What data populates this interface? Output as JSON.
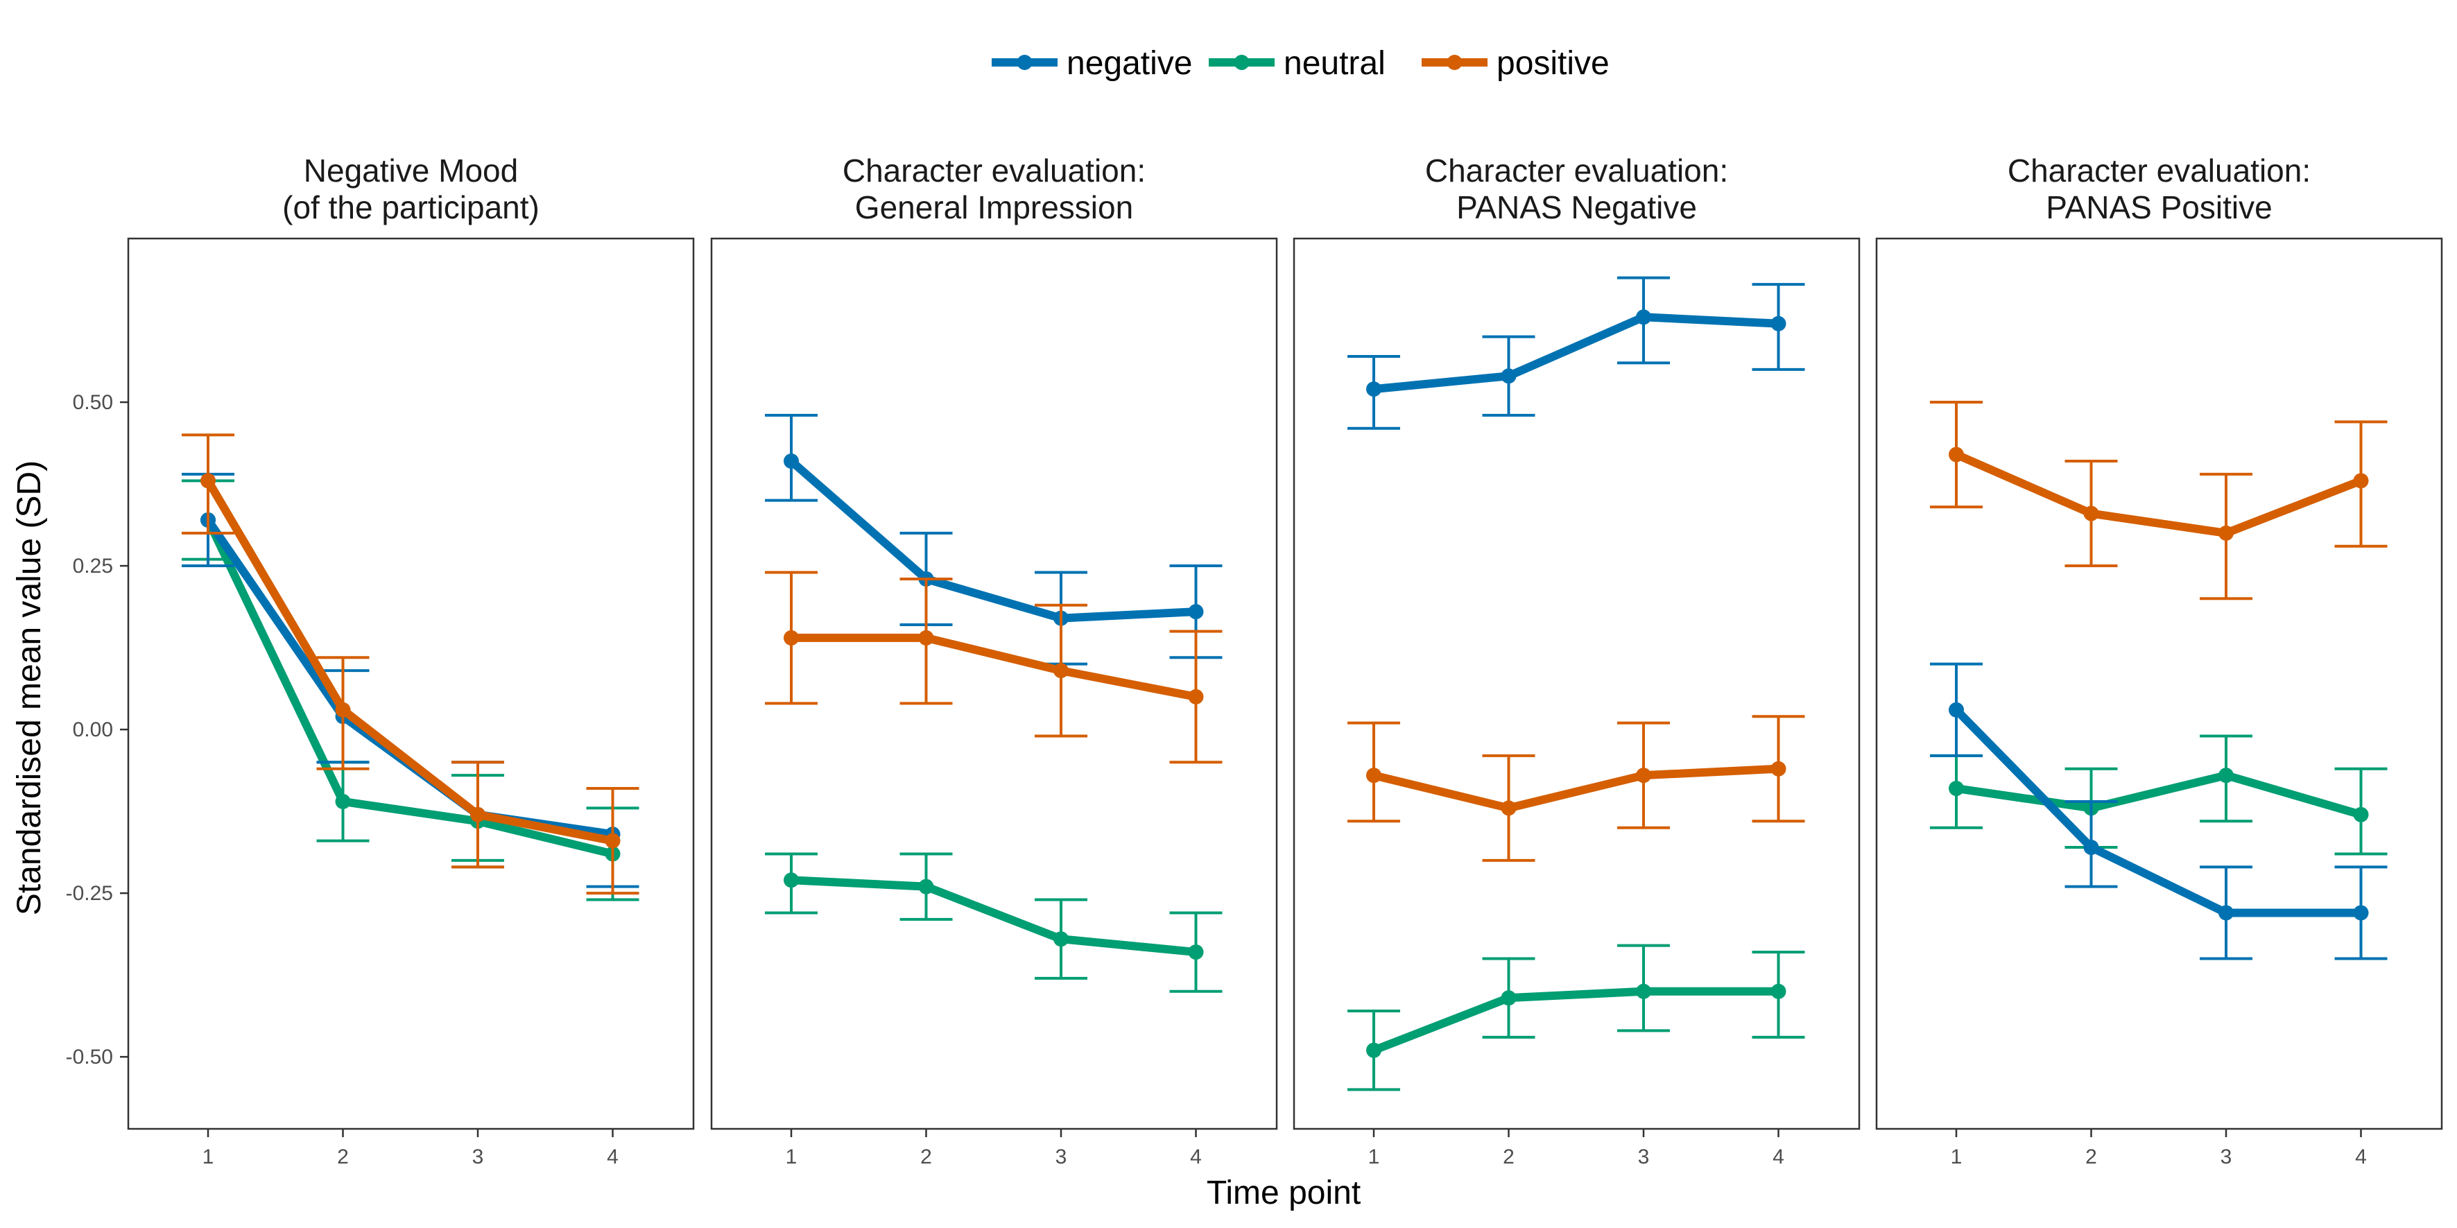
{
  "chart_data": {
    "type": "line",
    "subtype": "point-range with error bars, faceted",
    "xlabel": "Time point",
    "ylabel": "Standardised mean value (SD)",
    "x": [
      1,
      2,
      3,
      4
    ],
    "x_tick_labels": [
      "1",
      "2",
      "3",
      "4"
    ],
    "ylim": [
      -0.61,
      0.75
    ],
    "y_ticks": [
      0.5,
      0.25,
      0.0,
      -0.25,
      -0.5
    ],
    "y_tick_labels": [
      "0.50",
      "0.25",
      "0.00",
      "-0.25",
      "-0.50"
    ],
    "grid": false,
    "legend": {
      "position": "top-center",
      "entries": [
        {
          "key": "negative",
          "label": "negative",
          "color": "#0072B2"
        },
        {
          "key": "neutral",
          "label": "neutral",
          "color": "#009E73"
        },
        {
          "key": "positive",
          "label": "positive",
          "color": "#D55E00"
        }
      ]
    },
    "panels": [
      {
        "title_lines": [
          "Negative Mood",
          "(of the participant)"
        ],
        "series": [
          {
            "name": "negative",
            "values": [
              0.32,
              0.02,
              -0.13,
              -0.16
            ],
            "lower": [
              0.25,
              -0.05,
              -0.21,
              -0.24
            ],
            "upper": [
              0.39,
              0.09,
              -0.05,
              -0.09
            ]
          },
          {
            "name": "neutral",
            "values": [
              0.32,
              -0.11,
              -0.14,
              -0.19
            ],
            "lower": [
              0.26,
              -0.17,
              -0.2,
              -0.26
            ],
            "upper": [
              0.38,
              -0.05,
              -0.07,
              -0.12
            ]
          },
          {
            "name": "positive",
            "values": [
              0.38,
              0.03,
              -0.13,
              -0.17
            ],
            "lower": [
              0.3,
              -0.06,
              -0.21,
              -0.25
            ],
            "upper": [
              0.45,
              0.11,
              -0.05,
              -0.09
            ]
          }
        ]
      },
      {
        "title_lines": [
          "Character evaluation:",
          "General Impression"
        ],
        "series": [
          {
            "name": "negative",
            "values": [
              0.41,
              0.23,
              0.17,
              0.18
            ],
            "lower": [
              0.35,
              0.16,
              0.1,
              0.11
            ],
            "upper": [
              0.48,
              0.3,
              0.24,
              0.25
            ]
          },
          {
            "name": "neutral",
            "values": [
              -0.23,
              -0.24,
              -0.32,
              -0.34
            ],
            "lower": [
              -0.28,
              -0.29,
              -0.38,
              -0.4
            ],
            "upper": [
              -0.19,
              -0.19,
              -0.26,
              -0.28
            ]
          },
          {
            "name": "positive",
            "values": [
              0.14,
              0.14,
              0.09,
              0.05
            ],
            "lower": [
              0.04,
              0.04,
              -0.01,
              -0.05
            ],
            "upper": [
              0.24,
              0.23,
              0.19,
              0.15
            ]
          }
        ]
      },
      {
        "title_lines": [
          "Character evaluation:",
          "PANAS Negative"
        ],
        "series": [
          {
            "name": "negative",
            "values": [
              0.52,
              0.54,
              0.63,
              0.62
            ],
            "lower": [
              0.46,
              0.48,
              0.56,
              0.55
            ],
            "upper": [
              0.57,
              0.6,
              0.69,
              0.68
            ]
          },
          {
            "name": "neutral",
            "values": [
              -0.49,
              -0.41,
              -0.4,
              -0.4
            ],
            "lower": [
              -0.55,
              -0.47,
              -0.46,
              -0.47
            ],
            "upper": [
              -0.43,
              -0.35,
              -0.33,
              -0.34
            ]
          },
          {
            "name": "positive",
            "values": [
              -0.07,
              -0.12,
              -0.07,
              -0.06
            ],
            "lower": [
              -0.14,
              -0.2,
              -0.15,
              -0.14
            ],
            "upper": [
              0.01,
              -0.04,
              0.01,
              0.02
            ]
          }
        ]
      },
      {
        "title_lines": [
          "Character evaluation:",
          "PANAS Positive"
        ],
        "series": [
          {
            "name": "negative",
            "values": [
              0.03,
              -0.18,
              -0.28,
              -0.28
            ],
            "lower": [
              -0.04,
              -0.24,
              -0.35,
              -0.35
            ],
            "upper": [
              0.1,
              -0.11,
              -0.21,
              -0.21
            ]
          },
          {
            "name": "neutral",
            "values": [
              -0.09,
              -0.12,
              -0.07,
              -0.13
            ],
            "lower": [
              -0.15,
              -0.18,
              -0.14,
              -0.19
            ],
            "upper": [
              -0.04,
              -0.06,
              -0.01,
              -0.06
            ]
          },
          {
            "name": "positive",
            "values": [
              0.42,
              0.33,
              0.3,
              0.38
            ],
            "lower": [
              0.34,
              0.25,
              0.2,
              0.28
            ],
            "upper": [
              0.5,
              0.41,
              0.39,
              0.47
            ]
          }
        ]
      }
    ]
  }
}
